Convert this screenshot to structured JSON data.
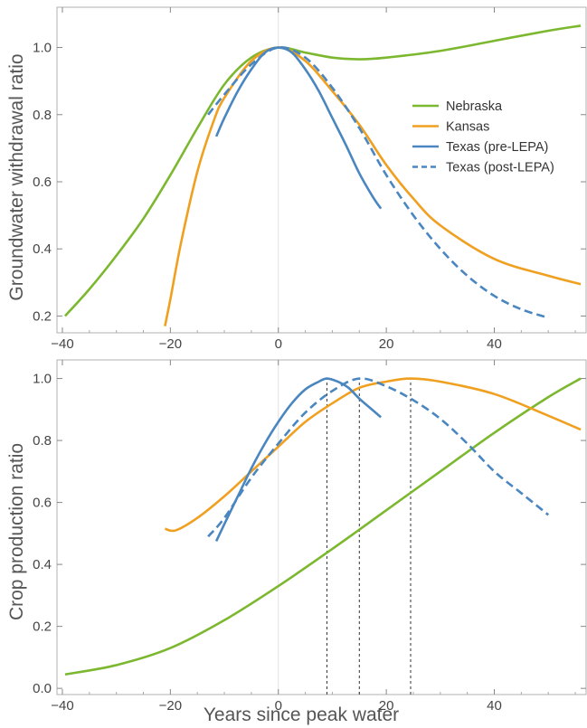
{
  "chart_data": [
    {
      "type": "line",
      "ylabel": "Groundwater withdrawal ratio",
      "xlim": [
        -41,
        57
      ],
      "ylim": [
        0.15,
        1.12
      ],
      "x_ticks": [
        "−40",
        "−20",
        "0",
        "20",
        "40"
      ],
      "x_tick_values": [
        -40,
        -20,
        0,
        20,
        40
      ],
      "y_ticks": [
        "0.2",
        "0.4",
        "0.6",
        "0.8",
        "1.0"
      ],
      "y_tick_values": [
        0.2,
        0.4,
        0.6,
        0.8,
        1.0
      ],
      "legend": {
        "placement": "right"
      },
      "series": [
        {
          "name": "Nebraska",
          "color": "#7cb82f",
          "dash": "solid",
          "x": [
            -39.5,
            -35,
            -30,
            -25,
            -20,
            -15,
            -10,
            -5,
            0,
            5,
            10,
            15,
            20,
            30,
            40,
            50,
            56
          ],
          "y": [
            0.2,
            0.28,
            0.38,
            0.49,
            0.62,
            0.76,
            0.89,
            0.97,
            1.0,
            0.985,
            0.97,
            0.965,
            0.97,
            0.99,
            1.02,
            1.05,
            1.065
          ]
        },
        {
          "name": "Kansas",
          "color": "#f0a020",
          "dash": "solid",
          "x": [
            -21,
            -20,
            -18,
            -15,
            -12,
            -10,
            -5,
            0,
            5,
            10,
            15,
            20,
            25,
            30,
            40,
            50,
            56
          ],
          "y": [
            0.17,
            0.25,
            0.42,
            0.63,
            0.78,
            0.85,
            0.96,
            1.0,
            0.96,
            0.87,
            0.77,
            0.65,
            0.55,
            0.47,
            0.37,
            0.32,
            0.295
          ]
        },
        {
          "name": "Texas (pre-LEPA)",
          "color": "#4a86c0",
          "dash": "solid",
          "x": [
            -11.5,
            -10,
            -7.5,
            -5,
            -2.5,
            0,
            2.5,
            5,
            7.5,
            10,
            12.5,
            15,
            17.5,
            19
          ],
          "y": [
            0.735,
            0.79,
            0.87,
            0.935,
            0.985,
            1.0,
            0.985,
            0.935,
            0.87,
            0.79,
            0.71,
            0.625,
            0.555,
            0.52
          ]
        },
        {
          "name": "Texas (post-LEPA)",
          "color": "#4a86c0",
          "dash": "dashed",
          "x": [
            -13,
            -10,
            -5,
            0,
            5,
            10,
            15,
            20,
            25,
            30,
            35,
            40,
            45,
            50
          ],
          "y": [
            0.8,
            0.86,
            0.95,
            1.0,
            0.97,
            0.88,
            0.76,
            0.62,
            0.5,
            0.4,
            0.32,
            0.26,
            0.22,
            0.195
          ]
        }
      ]
    },
    {
      "type": "line",
      "xlabel": "Years since peak water",
      "ylabel": "Crop production ratio",
      "xlim": [
        -41,
        57
      ],
      "ylim": [
        -0.02,
        1.06
      ],
      "x_ticks": [
        "−40",
        "−20",
        "0",
        "20",
        "40"
      ],
      "x_tick_values": [
        -40,
        -20,
        0,
        20,
        40
      ],
      "y_ticks": [
        "0.0",
        "0.2",
        "0.4",
        "0.6",
        "0.8",
        "1.0"
      ],
      "y_tick_values": [
        0.0,
        0.2,
        0.4,
        0.6,
        0.8,
        1.0
      ],
      "reference_lines_x": [
        9,
        15,
        24.5
      ],
      "series": [
        {
          "name": "Nebraska",
          "color": "#7cb82f",
          "dash": "solid",
          "x": [
            -39.5,
            -30,
            -20,
            -10,
            0,
            10,
            20,
            30,
            40,
            50,
            56
          ],
          "y": [
            0.045,
            0.075,
            0.13,
            0.22,
            0.33,
            0.45,
            0.575,
            0.7,
            0.825,
            0.94,
            1.0
          ]
        },
        {
          "name": "Kansas",
          "color": "#f0a020",
          "dash": "solid",
          "x": [
            -21,
            -19,
            -15,
            -10,
            -5,
            0,
            5,
            10,
            15,
            20,
            24.5,
            30,
            40,
            50,
            56
          ],
          "y": [
            0.515,
            0.51,
            0.55,
            0.62,
            0.7,
            0.78,
            0.86,
            0.92,
            0.97,
            0.99,
            1.0,
            0.99,
            0.95,
            0.88,
            0.835
          ]
        },
        {
          "name": "Texas (pre-LEPA)",
          "color": "#4a86c0",
          "dash": "solid",
          "x": [
            -11.5,
            -10,
            -7.5,
            -5,
            -2.5,
            0,
            2.5,
            5,
            7.5,
            9,
            11,
            13,
            15,
            17,
            19
          ],
          "y": [
            0.475,
            0.53,
            0.62,
            0.71,
            0.79,
            0.86,
            0.92,
            0.965,
            0.99,
            1.0,
            0.99,
            0.97,
            0.935,
            0.905,
            0.875
          ]
        },
        {
          "name": "Texas (post-LEPA)",
          "color": "#4a86c0",
          "dash": "dashed",
          "x": [
            -13,
            -10,
            -5,
            0,
            5,
            10,
            15,
            20,
            25,
            30,
            35,
            40,
            45,
            50
          ],
          "y": [
            0.49,
            0.55,
            0.68,
            0.79,
            0.89,
            0.96,
            1.0,
            0.975,
            0.93,
            0.87,
            0.79,
            0.7,
            0.63,
            0.56
          ]
        }
      ]
    }
  ]
}
